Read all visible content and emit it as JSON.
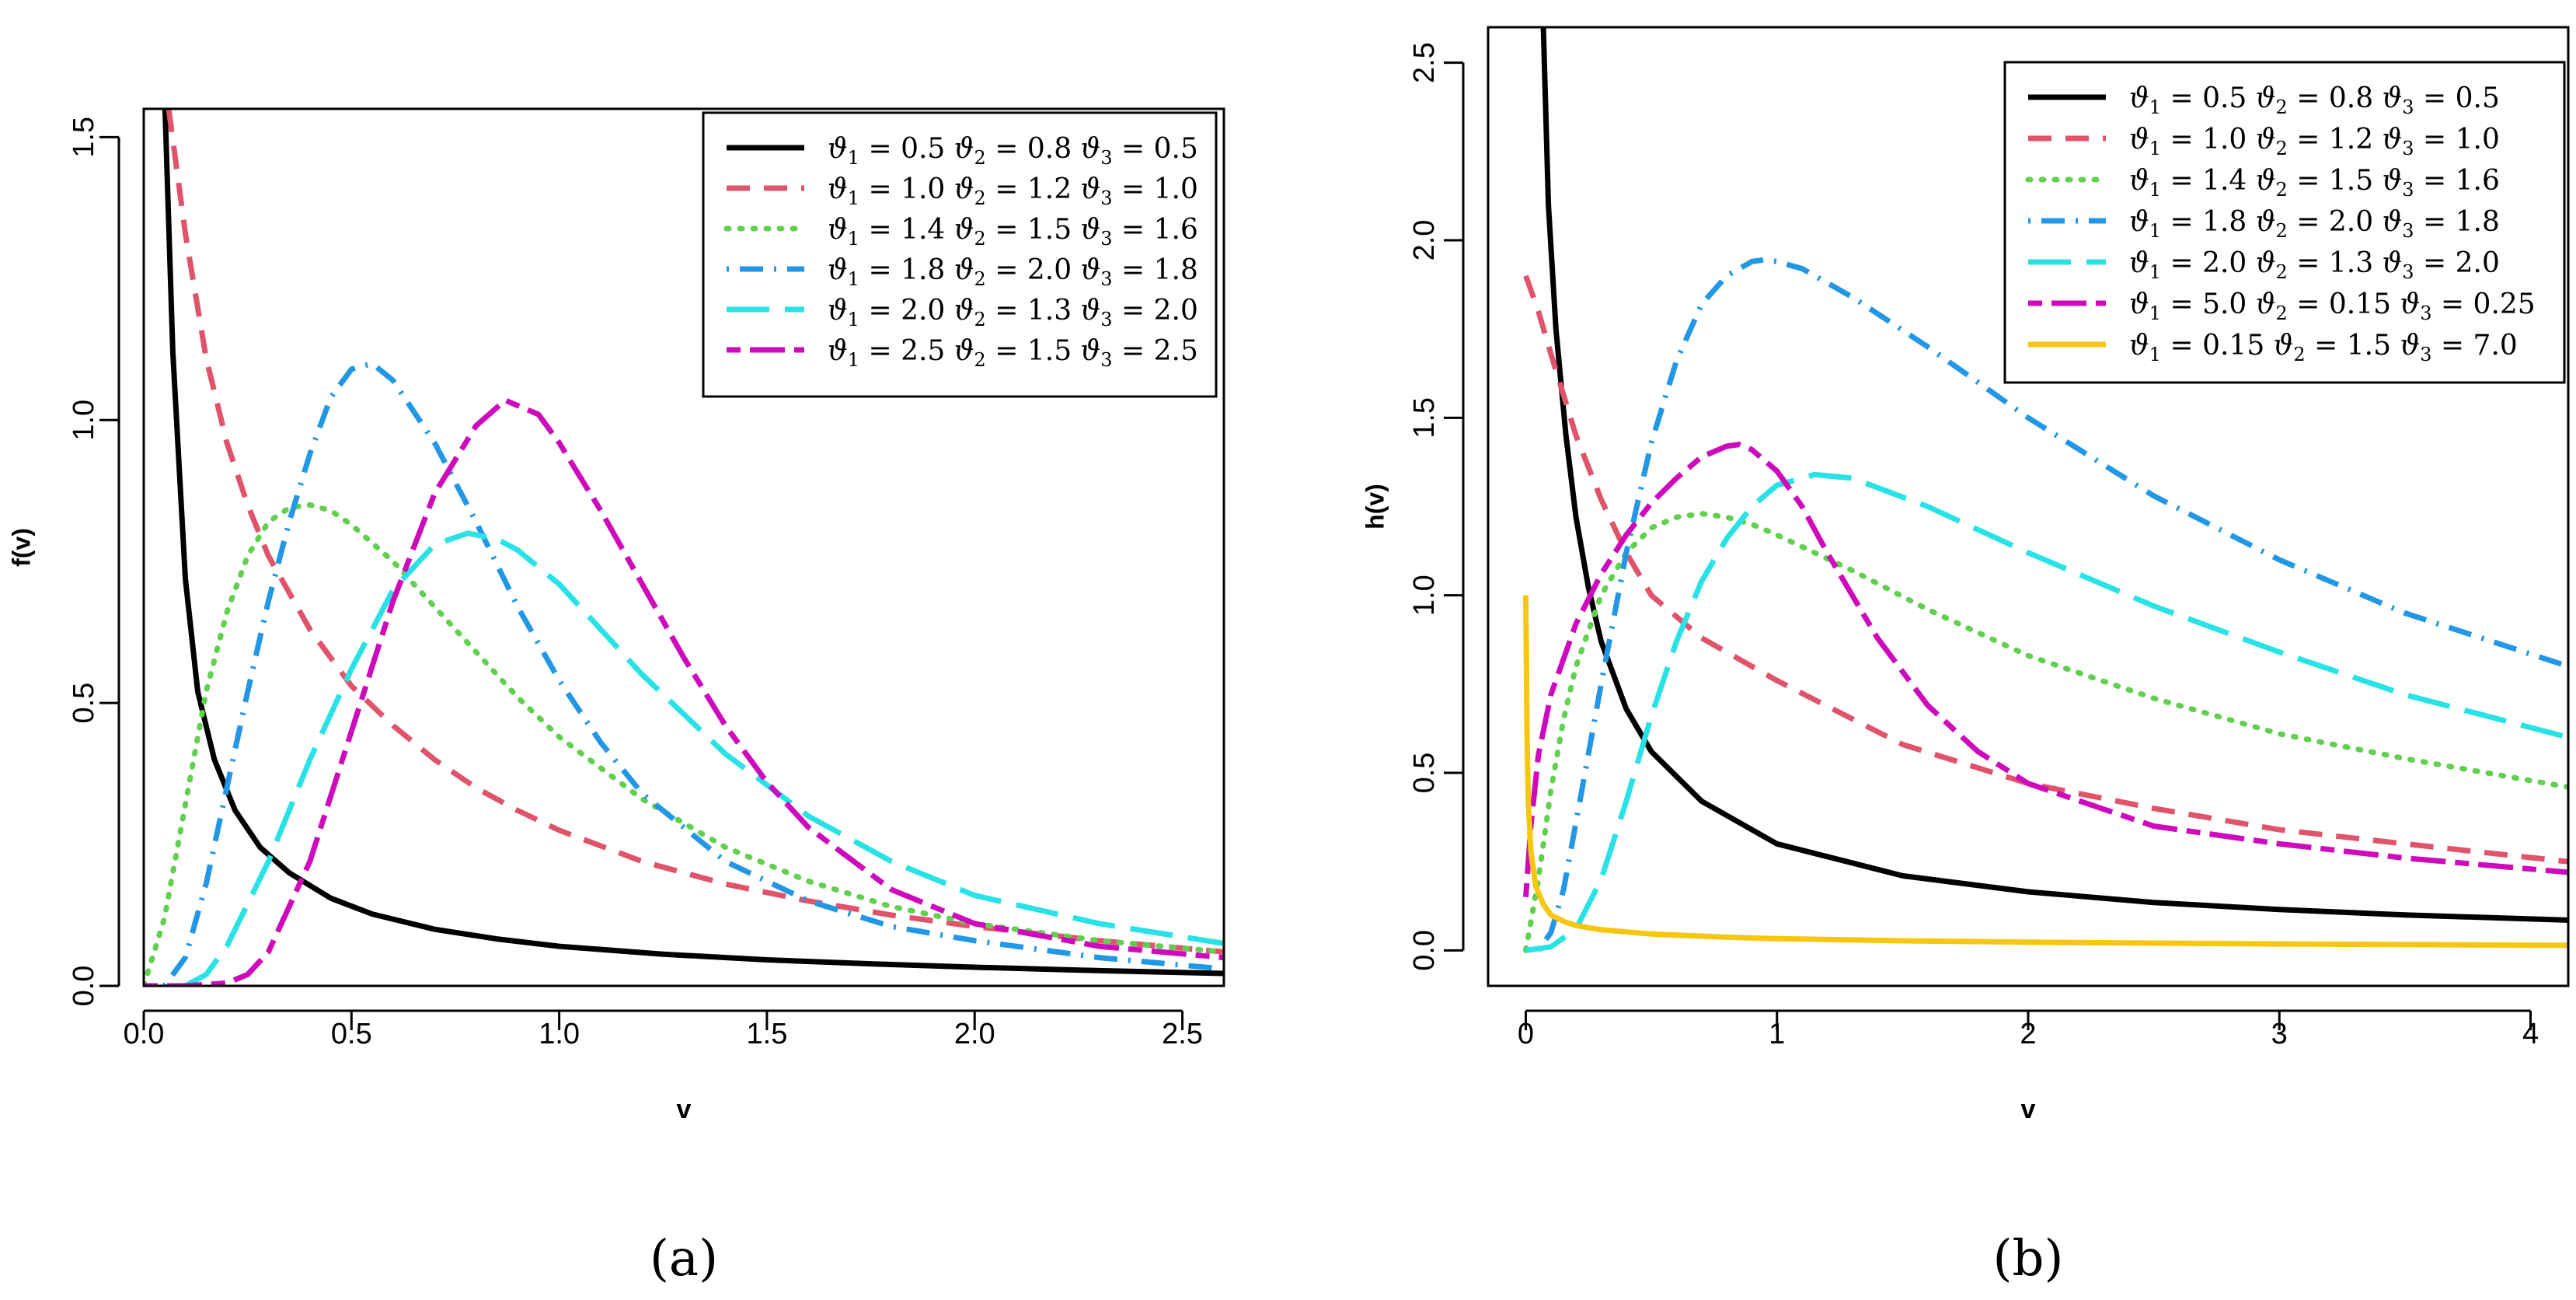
{
  "colors": {
    "black": "#000000",
    "red": "#df536b",
    "green": "#61d04f",
    "blue": "#2297e6",
    "cyan": "#28e2e5",
    "magenta": "#cd0bbc",
    "yellow": "#f5c710"
  },
  "chart_data": [
    {
      "type": "line",
      "panel_caption": "(a)",
      "xlabel": "v",
      "ylabel": "f(v)",
      "xlim": [
        0,
        2.6
      ],
      "ylim": [
        0,
        1.55
      ],
      "xticks": [
        0.0,
        0.5,
        1.0,
        1.5,
        2.0,
        2.5
      ],
      "xtick_labels": [
        "0.0",
        "0.5",
        "1.0",
        "1.5",
        "2.0",
        "2.5"
      ],
      "yticks": [
        0.0,
        0.5,
        1.0,
        1.5
      ],
      "ytick_labels": [
        "0.0",
        "0.5",
        "1.0",
        "1.5"
      ],
      "legend_position": "top-right",
      "series": [
        {
          "name": "ϑ1 = 0.5 ϑ2 = 0.8 ϑ3 = 0.5",
          "legend": [
            "0.5",
            "0.8",
            "0.5"
          ],
          "color": "black",
          "dash": "solid",
          "x": [
            0.05,
            0.07,
            0.1,
            0.13,
            0.17,
            0.22,
            0.28,
            0.35,
            0.45,
            0.55,
            0.7,
            0.85,
            1.0,
            1.25,
            1.5,
            1.75,
            2.0,
            2.3,
            2.6
          ],
          "y": [
            1.58,
            1.12,
            0.72,
            0.52,
            0.4,
            0.31,
            0.245,
            0.2,
            0.155,
            0.127,
            0.1,
            0.083,
            0.07,
            0.056,
            0.046,
            0.039,
            0.033,
            0.027,
            0.022
          ]
        },
        {
          "name": "ϑ1 = 1.0 ϑ2 = 1.2 ϑ3 = 1.0",
          "legend": [
            "1.0",
            "1.2",
            "1.0"
          ],
          "color": "red",
          "dash": "dashed",
          "x": [
            0.06,
            0.1,
            0.15,
            0.2,
            0.25,
            0.3,
            0.4,
            0.5,
            0.6,
            0.7,
            0.8,
            0.9,
            1.0,
            1.2,
            1.4,
            1.6,
            1.8,
            2.0,
            2.3,
            2.6
          ],
          "y": [
            1.55,
            1.33,
            1.11,
            0.96,
            0.85,
            0.76,
            0.63,
            0.53,
            0.46,
            0.4,
            0.35,
            0.31,
            0.275,
            0.22,
            0.18,
            0.15,
            0.125,
            0.105,
            0.08,
            0.06
          ]
        },
        {
          "name": "ϑ1 = 1.4 ϑ2 = 1.5 ϑ3 = 1.6",
          "legend": [
            "1.4",
            "1.5",
            "1.6"
          ],
          "color": "green",
          "dash": "dotted",
          "x": [
            0.0,
            0.05,
            0.1,
            0.15,
            0.2,
            0.25,
            0.3,
            0.35,
            0.4,
            0.45,
            0.5,
            0.6,
            0.7,
            0.8,
            0.9,
            1.0,
            1.2,
            1.4,
            1.6,
            1.8,
            2.0,
            2.3,
            2.6
          ],
          "y": [
            0.0,
            0.12,
            0.32,
            0.52,
            0.66,
            0.76,
            0.82,
            0.845,
            0.85,
            0.84,
            0.815,
            0.75,
            0.67,
            0.59,
            0.51,
            0.44,
            0.33,
            0.245,
            0.185,
            0.14,
            0.11,
            0.08,
            0.06
          ]
        },
        {
          "name": "ϑ1 = 1.8 ϑ2 = 2.0 ϑ3 = 1.8",
          "legend": [
            "1.8",
            "2.0",
            "1.8"
          ],
          "color": "blue",
          "dash": "dotdash",
          "x": [
            0.05,
            0.1,
            0.15,
            0.2,
            0.25,
            0.3,
            0.35,
            0.4,
            0.45,
            0.5,
            0.55,
            0.6,
            0.7,
            0.8,
            0.9,
            1.0,
            1.1,
            1.2,
            1.4,
            1.6,
            1.8,
            2.0,
            2.3,
            2.6
          ],
          "y": [
            0.0,
            0.05,
            0.18,
            0.35,
            0.52,
            0.68,
            0.82,
            0.94,
            1.04,
            1.09,
            1.1,
            1.07,
            0.96,
            0.82,
            0.67,
            0.54,
            0.43,
            0.34,
            0.22,
            0.15,
            0.105,
            0.08,
            0.05,
            0.03
          ]
        },
        {
          "name": "ϑ1 = 2.0 ϑ2 = 1.3 ϑ3 = 2.0",
          "legend": [
            "2.0",
            "1.3",
            "2.0"
          ],
          "color": "cyan",
          "dash": "longdash",
          "x": [
            0.1,
            0.15,
            0.2,
            0.3,
            0.4,
            0.5,
            0.6,
            0.7,
            0.78,
            0.85,
            0.9,
            1.0,
            1.1,
            1.2,
            1.4,
            1.6,
            1.8,
            2.0,
            2.3,
            2.6
          ],
          "y": [
            0.0,
            0.02,
            0.07,
            0.22,
            0.4,
            0.56,
            0.7,
            0.78,
            0.8,
            0.79,
            0.77,
            0.71,
            0.63,
            0.55,
            0.41,
            0.3,
            0.22,
            0.16,
            0.11,
            0.075
          ]
        },
        {
          "name": "ϑ1 = 2.5 ϑ2 = 1.5 ϑ3 = 2.5",
          "legend": [
            "2.5",
            "1.5",
            "2.5"
          ],
          "color": "magenta",
          "dash": "twodash",
          "x": [
            0.0,
            0.1,
            0.2,
            0.25,
            0.3,
            0.4,
            0.5,
            0.6,
            0.7,
            0.8,
            0.87,
            0.95,
            1.0,
            1.1,
            1.2,
            1.3,
            1.4,
            1.5,
            1.6,
            1.8,
            2.0,
            2.3,
            2.6
          ],
          "y": [
            0.0,
            0.0,
            0.005,
            0.02,
            0.06,
            0.22,
            0.45,
            0.68,
            0.87,
            0.99,
            1.035,
            1.01,
            0.96,
            0.84,
            0.71,
            0.58,
            0.46,
            0.36,
            0.28,
            0.17,
            0.11,
            0.07,
            0.05
          ]
        }
      ]
    },
    {
      "type": "line",
      "panel_caption": "(b)",
      "xlabel": "v",
      "ylabel": "h(v)",
      "xlim": [
        -0.15,
        4.15
      ],
      "ylim": [
        -0.1,
        2.6
      ],
      "xticks": [
        0,
        1,
        2,
        3,
        4
      ],
      "xtick_labels": [
        "0",
        "1",
        "2",
        "3",
        "4"
      ],
      "yticks": [
        0.0,
        0.5,
        1.0,
        1.5,
        2.0,
        2.5
      ],
      "ytick_labels": [
        "0.0",
        "0.5",
        "1.0",
        "1.5",
        "2.0",
        "2.5"
      ],
      "legend_position": "top-right",
      "series": [
        {
          "name": "ϑ1 = 0.5 ϑ2 = 0.8 ϑ3 = 0.5",
          "legend": [
            "0.5",
            "0.8",
            "0.5"
          ],
          "color": "black",
          "dash": "solid",
          "x": [
            0.07,
            0.09,
            0.12,
            0.16,
            0.2,
            0.25,
            0.3,
            0.4,
            0.5,
            0.7,
            1.0,
            1.5,
            2.0,
            2.5,
            3.0,
            3.5,
            4.15
          ],
          "y": [
            2.6,
            2.1,
            1.75,
            1.45,
            1.22,
            1.02,
            0.87,
            0.68,
            0.56,
            0.42,
            0.3,
            0.21,
            0.165,
            0.135,
            0.115,
            0.1,
            0.085
          ]
        },
        {
          "name": "ϑ1 = 1.0 ϑ2 = 1.2 ϑ3 = 1.0",
          "legend": [
            "1.0",
            "1.2",
            "1.0"
          ],
          "color": "red",
          "dash": "dashed",
          "x": [
            0.0,
            0.05,
            0.1,
            0.2,
            0.3,
            0.4,
            0.5,
            0.7,
            1.0,
            1.5,
            2.0,
            2.5,
            3.0,
            3.5,
            4.15
          ],
          "y": [
            1.9,
            1.8,
            1.68,
            1.45,
            1.27,
            1.12,
            1.0,
            0.88,
            0.76,
            0.58,
            0.47,
            0.4,
            0.34,
            0.3,
            0.25
          ]
        },
        {
          "name": "ϑ1 = 1.4 ϑ2 = 1.5 ϑ3 = 1.6",
          "legend": [
            "1.4",
            "1.5",
            "1.6"
          ],
          "color": "green",
          "dash": "dotted",
          "x": [
            0.0,
            0.05,
            0.1,
            0.15,
            0.2,
            0.3,
            0.4,
            0.5,
            0.6,
            0.7,
            0.8,
            0.9,
            1.0,
            1.3,
            1.6,
            2.0,
            2.5,
            3.0,
            3.5,
            4.15
          ],
          "y": [
            0.0,
            0.2,
            0.45,
            0.65,
            0.8,
            1.0,
            1.12,
            1.19,
            1.22,
            1.23,
            1.22,
            1.2,
            1.17,
            1.07,
            0.96,
            0.83,
            0.71,
            0.61,
            0.54,
            0.46
          ]
        },
        {
          "name": "ϑ1 = 1.8 ϑ2 = 2.0 ϑ3 = 1.8",
          "legend": [
            "1.8",
            "2.0",
            "1.8"
          ],
          "color": "blue",
          "dash": "dotdash",
          "x": [
            0.05,
            0.1,
            0.15,
            0.2,
            0.3,
            0.4,
            0.5,
            0.6,
            0.7,
            0.8,
            0.9,
            0.95,
            1.0,
            1.1,
            1.3,
            1.6,
            2.0,
            2.5,
            3.0,
            3.5,
            4.15
          ],
          "y": [
            0.0,
            0.05,
            0.17,
            0.36,
            0.75,
            1.12,
            1.43,
            1.66,
            1.82,
            1.9,
            1.94,
            1.945,
            1.94,
            1.92,
            1.84,
            1.7,
            1.5,
            1.28,
            1.1,
            0.95,
            0.8
          ]
        },
        {
          "name": "ϑ1 = 2.0 ϑ2 = 1.3 ϑ3 = 2.0",
          "legend": [
            "2.0",
            "1.3",
            "2.0"
          ],
          "color": "cyan",
          "dash": "longdash",
          "x": [
            0.0,
            0.1,
            0.2,
            0.3,
            0.4,
            0.5,
            0.6,
            0.7,
            0.8,
            0.9,
            1.0,
            1.15,
            1.3,
            1.6,
            2.0,
            2.5,
            3.0,
            3.5,
            4.15
          ],
          "y": [
            0.0,
            0.01,
            0.06,
            0.2,
            0.42,
            0.66,
            0.87,
            1.04,
            1.16,
            1.25,
            1.31,
            1.34,
            1.33,
            1.25,
            1.12,
            0.97,
            0.84,
            0.72,
            0.6
          ]
        },
        {
          "name": "ϑ1 = 5.0 ϑ2 = 0.15 ϑ3 = 0.25",
          "legend": [
            "5.0",
            "0.15",
            "0.25"
          ],
          "color": "magenta",
          "dash": "twodash",
          "x": [
            0.0,
            0.02,
            0.05,
            0.1,
            0.2,
            0.3,
            0.4,
            0.5,
            0.6,
            0.7,
            0.8,
            0.85,
            0.9,
            1.0,
            1.1,
            1.2,
            1.4,
            1.6,
            1.8,
            2.0,
            2.5,
            3.0,
            3.5,
            4.15
          ],
          "y": [
            0.15,
            0.35,
            0.55,
            0.72,
            0.92,
            1.06,
            1.17,
            1.26,
            1.33,
            1.39,
            1.42,
            1.425,
            1.41,
            1.35,
            1.25,
            1.12,
            0.88,
            0.69,
            0.56,
            0.47,
            0.35,
            0.3,
            0.26,
            0.22
          ]
        },
        {
          "name": "ϑ1 = 0.15 ϑ2 = 1.5 ϑ3 = 7.0",
          "legend": [
            "0.15",
            "1.5",
            "7.0"
          ],
          "color": "yellow",
          "dash": "solid",
          "x": [
            0.0,
            0.005,
            0.01,
            0.02,
            0.04,
            0.07,
            0.1,
            0.15,
            0.2,
            0.3,
            0.5,
            0.8,
            1.0,
            1.5,
            2.0,
            3.0,
            4.15
          ],
          "y": [
            1.0,
            0.6,
            0.42,
            0.28,
            0.18,
            0.13,
            0.1,
            0.082,
            0.07,
            0.058,
            0.046,
            0.037,
            0.033,
            0.027,
            0.023,
            0.018,
            0.014
          ]
        }
      ]
    }
  ]
}
